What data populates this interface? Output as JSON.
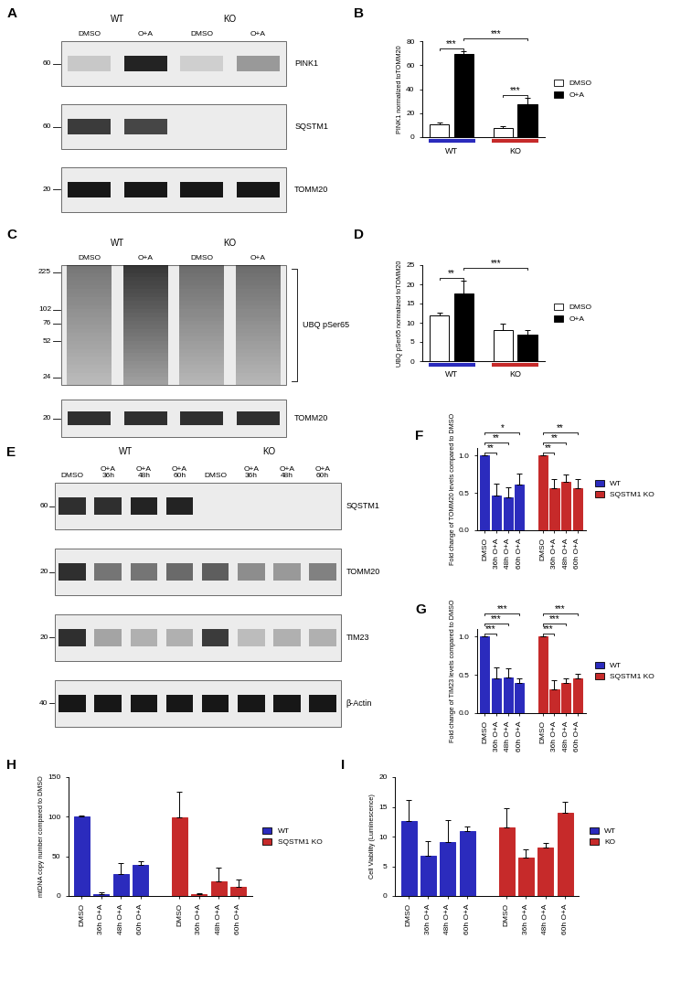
{
  "chart_data": [
    {
      "panel": "B",
      "type": "bar",
      "y_label": "PINK1 normalized toTOMM20",
      "categories": [
        "WT",
        "KO"
      ],
      "series": [
        {
          "name": "DMSO",
          "color": "#ffffff",
          "values": [
            11,
            8
          ],
          "errors": [
            1,
            1.5
          ]
        },
        {
          "name": "O+A",
          "color": "#000000",
          "values": [
            69,
            27.5
          ],
          "errors": [
            2.5,
            5
          ]
        }
      ],
      "ylim": [
        0,
        80
      ],
      "yticks": [
        0,
        20,
        40,
        60,
        80
      ],
      "legend": "right",
      "significance": [
        {
          "between": [
            [
              0,
              0
            ],
            [
              1,
              0
            ]
          ],
          "label": "***"
        },
        {
          "between": [
            [
              0,
              1
            ],
            [
              1,
              1
            ]
          ],
          "label": "***"
        },
        {
          "between": [
            [
              1,
              0
            ],
            [
              1,
              1
            ]
          ],
          "label": "***"
        }
      ]
    },
    {
      "panel": "D",
      "type": "bar",
      "y_label": "UBQ pSer65 normalized toTOMM20",
      "categories": [
        "WT",
        "KO"
      ],
      "series": [
        {
          "name": "DMSO",
          "color": "#ffffff",
          "values": [
            12,
            8.2
          ],
          "errors": [
            0.6,
            1.6
          ]
        },
        {
          "name": "O+A",
          "color": "#000000",
          "values": [
            17.7,
            7
          ],
          "errors": [
            3.2,
            1
          ]
        }
      ],
      "ylim": [
        0,
        25
      ],
      "yticks": [
        0,
        5,
        10,
        15,
        20,
        25
      ],
      "legend": "right",
      "significance": [
        {
          "between": [
            [
              0,
              0
            ],
            [
              1,
              0
            ]
          ],
          "label": "**"
        },
        {
          "between": [
            [
              1,
              0
            ],
            [
              1,
              1
            ]
          ],
          "label": "***"
        }
      ]
    },
    {
      "panel": "F",
      "type": "bar",
      "y_label": "Fold change of TOMM20 levels compared to DMSO",
      "categories": [
        "DMSO",
        "36h O+A",
        "48h O+A",
        "60h O+A"
      ],
      "series": [
        {
          "name": "WT",
          "color": "#2b2bbd",
          "values": [
            1.0,
            0.46,
            0.44,
            0.61
          ],
          "errors": [
            0,
            0.16,
            0.13,
            0.15
          ]
        },
        {
          "name": "SQSTM1 KO",
          "color": "#c62a2a",
          "values": [
            1.0,
            0.56,
            0.65,
            0.56
          ],
          "errors": [
            0,
            0.12,
            0.1,
            0.13
          ]
        }
      ],
      "ylim": [
        0,
        1.1
      ],
      "yticks": [
        {
          "value": 0,
          "label": "0.0"
        },
        {
          "value": 0.5,
          "label": "0.5"
        },
        {
          "value": 1,
          "label": "1.0"
        }
      ],
      "legend": "right",
      "significance": [
        {
          "between": [
            [
              0,
              0
            ],
            [
              0,
              1
            ]
          ],
          "label": "**"
        },
        {
          "between": [
            [
              0,
              0
            ],
            [
              0,
              2
            ]
          ],
          "label": "**"
        },
        {
          "between": [
            [
              0,
              0
            ],
            [
              0,
              3
            ]
          ],
          "label": "*"
        },
        {
          "between": [
            [
              1,
              0
            ],
            [
              1,
              1
            ]
          ],
          "label": "**"
        },
        {
          "between": [
            [
              1,
              0
            ],
            [
              1,
              2
            ]
          ],
          "label": "**"
        },
        {
          "between": [
            [
              1,
              0
            ],
            [
              1,
              3
            ]
          ],
          "label": "**"
        }
      ]
    },
    {
      "panel": "G",
      "type": "bar",
      "y_label": "Fold change of TIM23 levels compared to DMSO",
      "categories": [
        "DMSO",
        "36h O+A",
        "48h O+A",
        "60h O+A"
      ],
      "series": [
        {
          "name": "WT",
          "color": "#2b2bbd",
          "values": [
            1.0,
            0.45,
            0.47,
            0.4
          ],
          "errors": [
            0,
            0.15,
            0.12,
            0.06
          ]
        },
        {
          "name": "SQSTM1 KO",
          "color": "#c62a2a",
          "values": [
            1.0,
            0.31,
            0.39,
            0.45
          ],
          "errors": [
            0,
            0.12,
            0.06,
            0.06
          ]
        }
      ],
      "ylim": [
        0,
        1.1
      ],
      "yticks": [
        {
          "value": 0,
          "label": "0.0"
        },
        {
          "value": 0.5,
          "label": "0.5"
        },
        {
          "value": 1,
          "label": "1.0"
        }
      ],
      "legend": "right",
      "significance": [
        {
          "between": [
            [
              0,
              0
            ],
            [
              0,
              1
            ]
          ],
          "label": "***"
        },
        {
          "between": [
            [
              0,
              0
            ],
            [
              0,
              2
            ]
          ],
          "label": "***"
        },
        {
          "between": [
            [
              0,
              0
            ],
            [
              0,
              3
            ]
          ],
          "label": "***"
        },
        {
          "between": [
            [
              1,
              0
            ],
            [
              1,
              1
            ]
          ],
          "label": "***"
        },
        {
          "between": [
            [
              1,
              0
            ],
            [
              1,
              2
            ]
          ],
          "label": "***"
        },
        {
          "between": [
            [
              1,
              0
            ],
            [
              1,
              3
            ]
          ],
          "label": "***"
        }
      ]
    },
    {
      "panel": "H",
      "type": "bar",
      "y_label": "mtDNA copy number compared to DMSO",
      "categories": [
        "DMSO",
        "36h O+A",
        "48h O+A",
        "60h O+A"
      ],
      "series": [
        {
          "name": "WT",
          "color": "#2b2bbd",
          "values": [
            100,
            2,
            28,
            39
          ],
          "errors": [
            2,
            3,
            14,
            5
          ]
        },
        {
          "name": "SQSTM1 KO",
          "color": "#c62a2a",
          "values": [
            99,
            2,
            19,
            11
          ],
          "errors": [
            33,
            2,
            17,
            10
          ]
        }
      ],
      "ylim": [
        0,
        150
      ],
      "yticks": [
        0,
        50,
        100,
        150
      ],
      "legend": "right"
    },
    {
      "panel": "I",
      "type": "bar",
      "y_label": "Cell Viability (Luminescence)",
      "categories": [
        "DMSO",
        "36h O+A",
        "48h O+A",
        "60h O+A"
      ],
      "series": [
        {
          "name": "WT",
          "color": "#2b2bbd",
          "values": [
            12.6,
            6.8,
            9.1,
            10.9
          ],
          "errors": [
            3.6,
            2.5,
            3.6,
            0.8
          ]
        },
        {
          "name": "KO",
          "color": "#c62a2a",
          "values": [
            11.5,
            6.5,
            8.1,
            14.0
          ],
          "errors": [
            3.2,
            1.3,
            0.8,
            1.8
          ]
        }
      ],
      "ylim": [
        0,
        20
      ],
      "yticks": [
        0,
        5,
        10,
        15,
        20
      ],
      "legend": "right"
    }
  ],
  "blots": [
    {
      "panel": "A",
      "groups": [
        "WT",
        "KO"
      ],
      "lanes": [
        "DMSO",
        "O+A",
        "DMSO",
        "O+A"
      ],
      "rows": [
        {
          "label": "PINK1",
          "mw": 60,
          "bands": [
            0.15,
            0.85,
            0.12,
            0.35
          ]
        },
        {
          "label": "SQSTM1",
          "mw": 60,
          "bands": [
            0.75,
            0.7,
            0,
            0
          ]
        },
        {
          "label": "TOMM20",
          "mw": 20,
          "bands": [
            0.9,
            0.9,
            0.9,
            0.9
          ]
        }
      ]
    },
    {
      "panel": "C",
      "groups": [
        "WT",
        "KO"
      ],
      "lanes": [
        "DMSO",
        "O+A",
        "DMSO",
        "O+A"
      ],
      "rows": [
        {
          "label": "UBQ pSer65",
          "type": "smear",
          "mw": [
            225,
            102,
            76,
            52,
            24
          ],
          "bands": [
            0.55,
            0.85,
            0.6,
            0.6
          ]
        },
        {
          "label": "TOMM20",
          "mw": 20,
          "bands": [
            0.8,
            0.8,
            0.8,
            0.8
          ]
        }
      ]
    },
    {
      "panel": "E",
      "groups": [
        "WT",
        "KO"
      ],
      "lanes": [
        "DMSO",
        "O+A\n36h",
        "O+A\n48h",
        "O+A\n60h",
        "DMSO",
        "O+A\n36h",
        "O+A\n48h",
        "O+A\n60h"
      ],
      "rows": [
        {
          "label": "SQSTM1",
          "mw": 60,
          "bands": [
            0.8,
            0.8,
            0.85,
            0.85,
            0,
            0,
            0,
            0
          ]
        },
        {
          "label": "TOMM20",
          "mw": 20,
          "bands": [
            0.8,
            0.5,
            0.5,
            0.55,
            0.6,
            0.4,
            0.35,
            0.45
          ]
        },
        {
          "label": "TIM23",
          "mw": 20,
          "bands": [
            0.8,
            0.3,
            0.25,
            0.25,
            0.75,
            0.2,
            0.25,
            0.25
          ]
        },
        {
          "label": "β-Actin",
          "mw": 40,
          "bands": [
            0.9,
            0.9,
            0.9,
            0.9,
            0.9,
            0.9,
            0.9,
            0.9
          ]
        }
      ]
    }
  ]
}
